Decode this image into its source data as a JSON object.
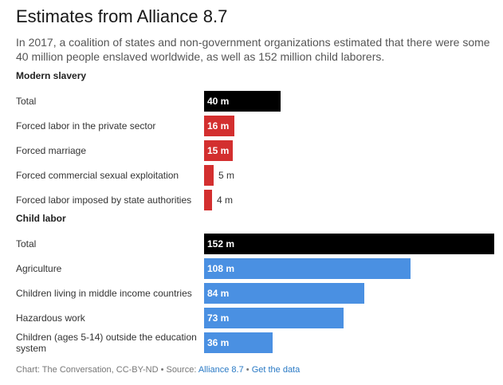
{
  "title": "Estimates from Alliance 8.7",
  "subtitle": "In 2017, a coalition of states and non-government organizations estimated that there were some 40 million people enslaved worldwide, as well as 152 million child laborers.",
  "footer": {
    "prefix": "Chart: The Conversation, CC-BY-ND • Source: ",
    "source_link": "Alliance 8.7",
    "separator": " • ",
    "data_link": "Get the data"
  },
  "colors": {
    "total": "#000000",
    "modern_slavery": "#d32f2f",
    "child_labor": "#4a90e2"
  },
  "chart_data": {
    "type": "bar",
    "orientation": "horizontal",
    "xlim": [
      0,
      152
    ],
    "sections": [
      {
        "name": "Modern slavery",
        "categories": [
          "Total",
          "Forced labor in the private sector",
          "Forced marriage",
          "Forced commercial sexual exploitation",
          "Forced labor imposed by state authorities"
        ],
        "values": [
          40,
          16,
          15,
          5,
          4
        ],
        "labels": [
          "40 m",
          "16 m",
          "15 m",
          "5 m",
          "4 m"
        ]
      },
      {
        "name": "Child labor",
        "categories": [
          "Total",
          "Agriculture",
          "Children living in middle income countries",
          "Hazardous work",
          "Children (ages 5-14) outside the education system"
        ],
        "values": [
          152,
          108,
          84,
          73,
          36
        ],
        "labels": [
          "152 m",
          "108 m",
          "84 m",
          "73 m",
          "36 m"
        ]
      }
    ]
  }
}
